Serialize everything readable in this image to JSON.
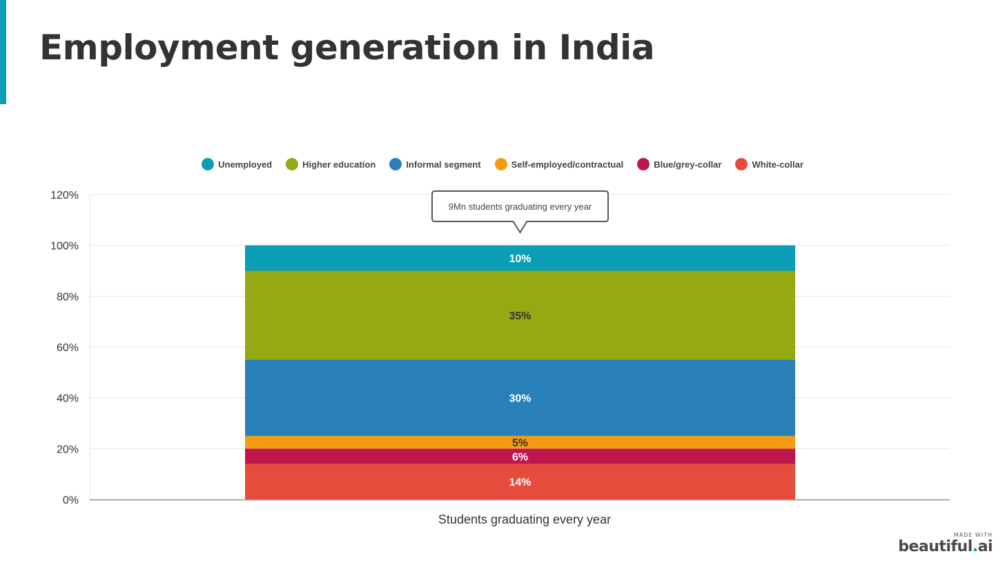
{
  "slide": {
    "title": "Employment generation in India"
  },
  "brand": {
    "made_with": "MADE WITH",
    "name": "beautiful",
    "dot": ".",
    "suffix": "ai"
  },
  "colors": {
    "accent": "#0a9fb4",
    "grid": "#e4e4e4",
    "axis": "#aaaaaa"
  },
  "chart_data": {
    "type": "bar",
    "stacked": true,
    "categories": [
      "Students graduating every year"
    ],
    "xlabel": "Students graduating every year",
    "ylabel": "",
    "ylim": [
      0,
      120
    ],
    "yticks": [
      "0%",
      "20%",
      "40%",
      "60%",
      "80%",
      "100%",
      "120%"
    ],
    "grid": true,
    "legend_position": "top",
    "annotation": "9Mn students graduating every year",
    "series": [
      {
        "name": "White-collar",
        "values": [
          14
        ],
        "label": "14%",
        "color": "#e64c3c",
        "label_color": "#ffffff"
      },
      {
        "name": "Blue/grey-collar",
        "values": [
          6
        ],
        "label": "6%",
        "color": "#bf1650",
        "label_color": "#ffffff"
      },
      {
        "name": "Self-employed/contractual",
        "values": [
          5
        ],
        "label": "5%",
        "color": "#f39c12",
        "label_color": "#333333"
      },
      {
        "name": "Informal segment",
        "values": [
          30
        ],
        "label": "30%",
        "color": "#2980b9",
        "label_color": "#ffffff"
      },
      {
        "name": "Higher education",
        "values": [
          35
        ],
        "label": "35%",
        "color": "#95a912",
        "label_color": "#333333"
      },
      {
        "name": "Unemployed",
        "values": [
          10
        ],
        "label": "10%",
        "color": "#0a9fb4",
        "label_color": "#ffffff"
      }
    ],
    "legend_order": [
      "Unemployed",
      "Higher education",
      "Informal segment",
      "Self-employed/contractual",
      "Blue/grey-collar",
      "White-collar"
    ]
  }
}
